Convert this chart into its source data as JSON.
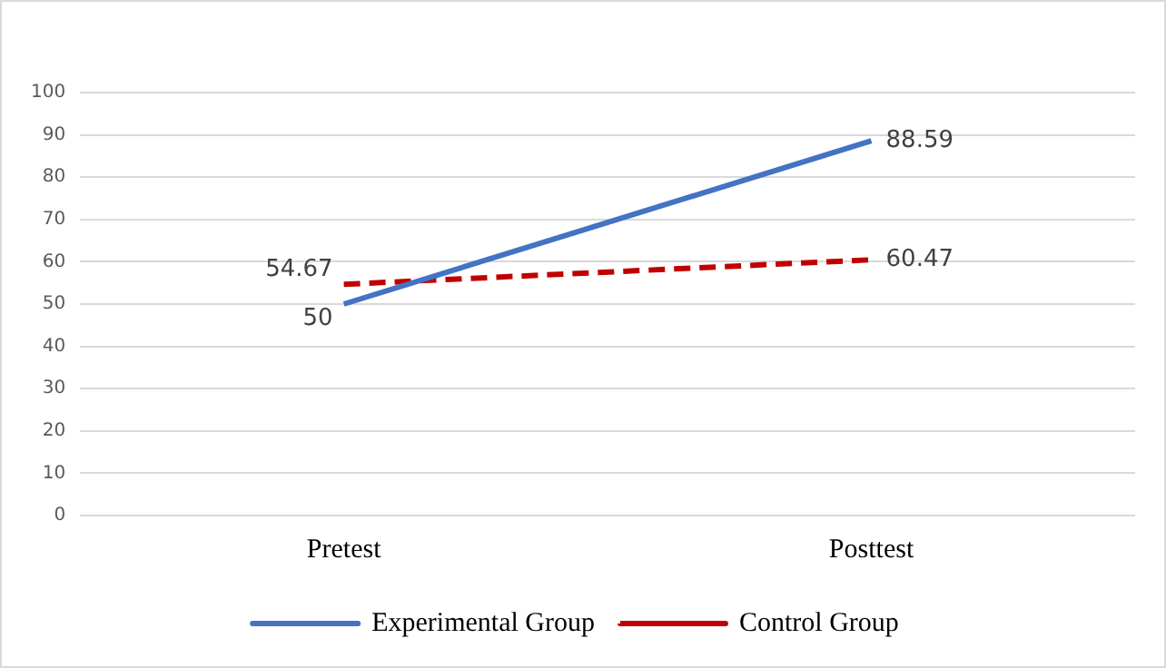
{
  "chart_data": {
    "type": "line",
    "categories": [
      "Pretest",
      "Posttest"
    ],
    "series": [
      {
        "name": "Experimental Group",
        "color": "#4472c4",
        "values": [
          50,
          88.59
        ],
        "line_style": "solid"
      },
      {
        "name": "Control Group",
        "color": "#c00000",
        "values": [
          54.67,
          60.47
        ],
        "line_style": "dashed"
      }
    ],
    "ylim": [
      0,
      100
    ],
    "yticks": [
      0,
      10,
      20,
      30,
      40,
      50,
      60,
      70,
      80,
      90,
      100
    ],
    "grid": "y",
    "legend": "bottom",
    "data_labels": true,
    "marker": "none"
  }
}
